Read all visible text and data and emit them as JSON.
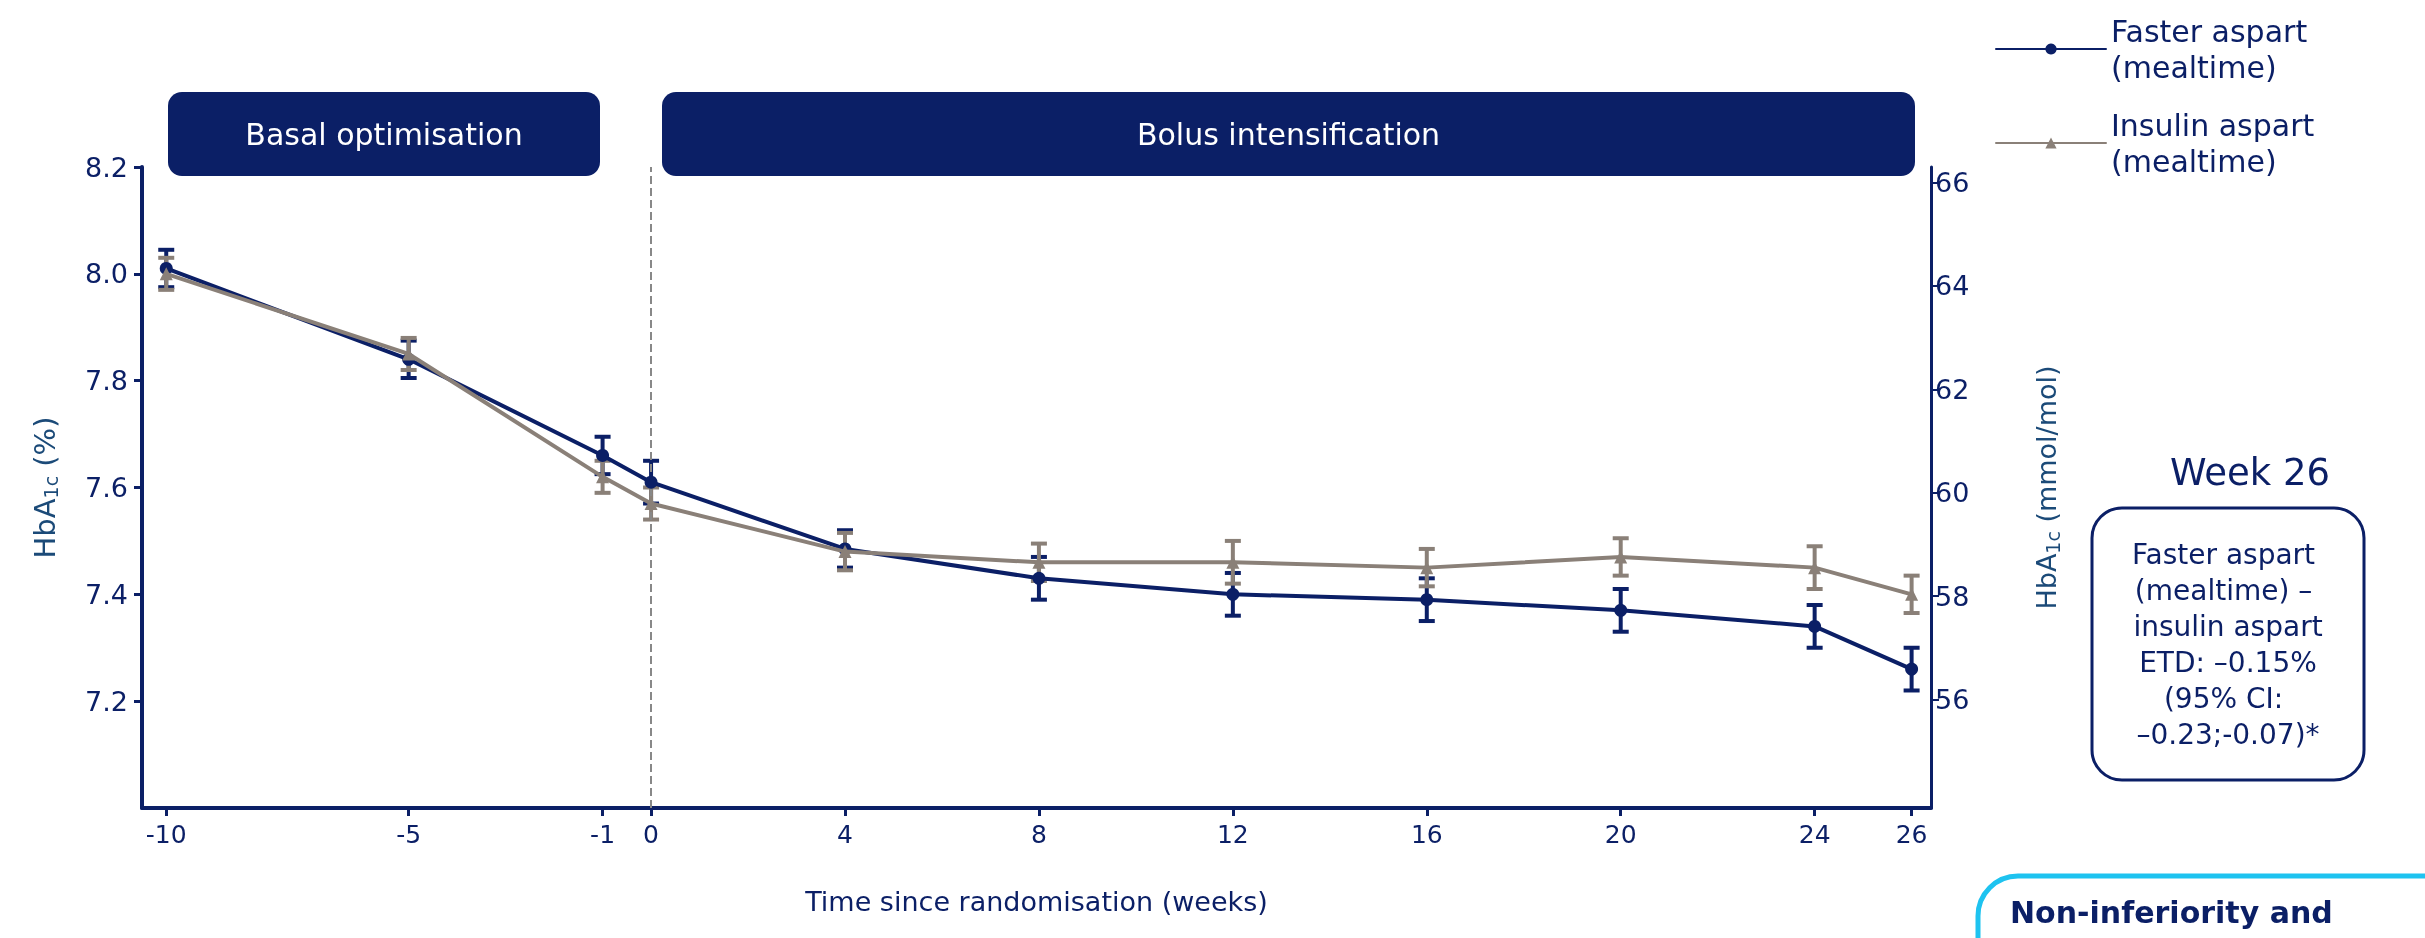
{
  "chart_data": {
    "type": "line",
    "xlabel": "Time since randomisation (weeks)",
    "ylabel": "HbA$_{1c}$ (%)",
    "y2label": "HbA$_{1c}$ (mmol/mol)",
    "x": [
      -10,
      -5,
      -1,
      0,
      4,
      8,
      12,
      16,
      20,
      24,
      26
    ],
    "series": [
      {
        "name": "Faster aspart (mealtime)",
        "color": "#0b1f66",
        "marker": "circle",
        "values": [
          8.01,
          7.84,
          7.66,
          7.61,
          7.485,
          7.43,
          7.4,
          7.39,
          7.37,
          7.34,
          7.26
        ],
        "errors": [
          0.035,
          0.035,
          0.035,
          0.04,
          0.035,
          0.04,
          0.04,
          0.04,
          0.04,
          0.04,
          0.04
        ]
      },
      {
        "name": "Insulin aspart (mealtime)",
        "color": "#8a8078",
        "marker": "triangle",
        "values": [
          8.0,
          7.85,
          7.62,
          7.57,
          7.48,
          7.46,
          7.46,
          7.45,
          7.47,
          7.45,
          7.4
        ],
        "errors": [
          0.03,
          0.03,
          0.03,
          0.03,
          0.035,
          0.035,
          0.04,
          0.035,
          0.035,
          0.04,
          0.035
        ]
      }
    ],
    "xlim": [
      -10.5,
      26.4
    ],
    "xticks": [
      -10,
      -5,
      -1,
      0,
      4,
      8,
      12,
      16,
      20,
      24,
      26
    ],
    "ylim": [
      7.0,
      8.2
    ],
    "yticks": [
      {
        "value": 7.2,
        "label": "7.2"
      },
      {
        "value": 7.4,
        "label": "7.4"
      },
      {
        "value": 7.6,
        "label": "7.6"
      },
      {
        "value": 7.8,
        "label": "7.8"
      },
      {
        "value": 8.0,
        "label": "8.0"
      },
      {
        "value": 8.2,
        "label": "8.2"
      }
    ],
    "y2lim": [
      53.9,
      66.3
    ],
    "y2ticks": [
      56,
      58,
      60,
      62,
      64,
      66
    ],
    "ref_lines": [
      {
        "axis": "x",
        "value": 0,
        "color": "#888888",
        "line_style": "dashed"
      }
    ],
    "annotations": [
      "Basal optimisation",
      "Bolus intensification",
      "Week 26",
      "Faster aspart (mealtime) – insulin aspart ETD: –0.15% (95% CI: –0.23;-0.07)*",
      "Non-inferiority and"
    ],
    "grid": false,
    "legend": "top right",
    "line_style": "solid"
  }
}
